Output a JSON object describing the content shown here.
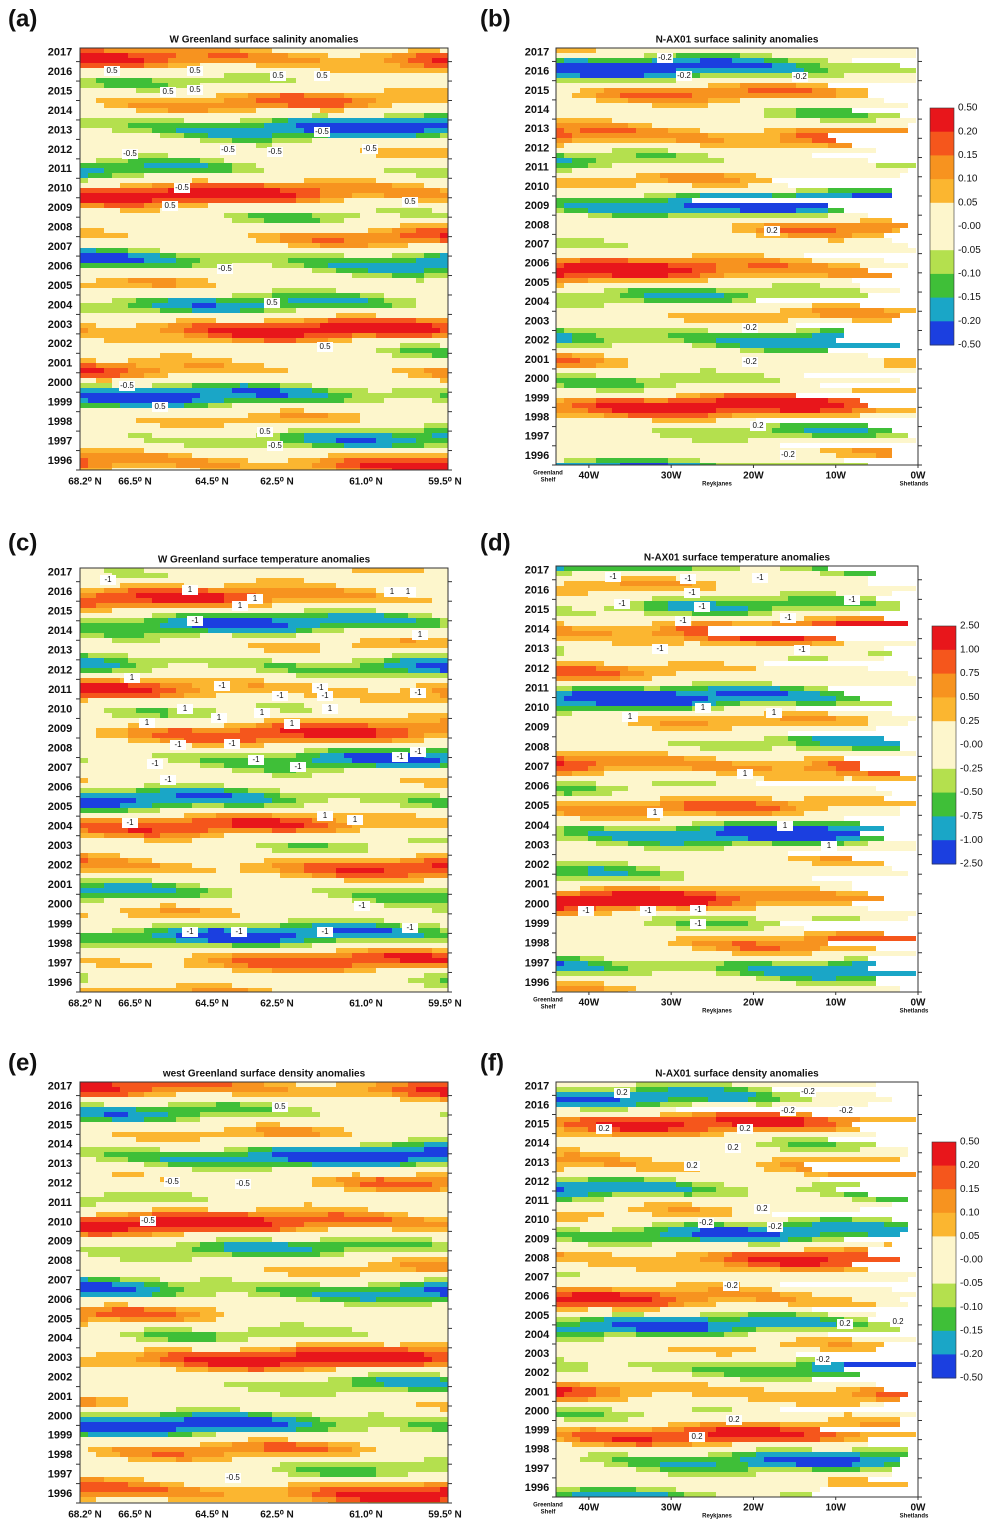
{
  "chart_data": [
    {
      "type": "contour",
      "panel": "(a)",
      "title": "W Greenland surface salinity anomalies",
      "ylim": [
        1996,
        2017.7
      ],
      "yticks": [
        1996,
        1997,
        1998,
        1999,
        2000,
        2001,
        2002,
        2003,
        2004,
        2005,
        2006,
        2007,
        2008,
        2009,
        2010,
        2011,
        2012,
        2013,
        2014,
        2015,
        2016,
        2017
      ],
      "xtick_labels": [
        "68.2⁰ N",
        "66.5⁰ N",
        "64.5⁰ N",
        "62.5⁰ N",
        "61.0⁰ N",
        "59.5⁰ N"
      ],
      "colors": [
        "#e8161b",
        "#f5561c",
        "#f7931f",
        "#fbb630",
        "#fdf6cc",
        "#fdf6cc",
        "#b4e04e",
        "#3fbf38",
        "#1aa6c7",
        "#1b3fe0"
      ],
      "contour_labels": [
        "0.5",
        "0.5",
        "0.5",
        "0.5",
        "0.5",
        "0.5",
        "-0.5",
        "-0.5",
        "-0.5",
        "-0.5",
        "-0.5",
        "-0.5",
        "0.5",
        "0.5",
        "-0.5",
        "0.5",
        "0.5",
        "-0.5",
        "0.5",
        "0.5",
        "-0.5"
      ]
    },
    {
      "type": "contour",
      "panel": "(b)",
      "title": "N-AX01 surface salinity anomalies",
      "ylim": [
        1996,
        2017.7
      ],
      "yticks": [
        1996,
        1997,
        1998,
        1999,
        2000,
        2001,
        2002,
        2003,
        2004,
        2005,
        2006,
        2007,
        2008,
        2009,
        2010,
        2011,
        2012,
        2013,
        2014,
        2015,
        2016,
        2017
      ],
      "xlim": [
        -44,
        0
      ],
      "xticks": [
        {
          "value": -40,
          "label": "40W"
        },
        {
          "value": -30,
          "label": "30W"
        },
        {
          "value": -20,
          "label": "20W"
        },
        {
          "value": -10,
          "label": "10W"
        },
        {
          "value": 0,
          "label": "0W"
        }
      ],
      "section_labels": {
        "start": [
          "Greenland",
          "Shelf"
        ],
        "middle": "Reykjanes",
        "end": "Shetlands"
      },
      "colors": [
        "#e8161b",
        "#f5561c",
        "#f7931f",
        "#fbb630",
        "#fdf6cc",
        "#fdf6cc",
        "#b4e04e",
        "#3fbf38",
        "#1aa6c7",
        "#1b3fe0"
      ],
      "colorbar_labels": [
        "0.50",
        "0.20",
        "0.15",
        "0.10",
        "0.05",
        "-0.00",
        "-0.05",
        "-0.10",
        "-0.15",
        "-0.20",
        "-0.50"
      ],
      "contour_labels": [
        "-0.2",
        "-0.2",
        "-0.2",
        "0.2",
        "-0.2",
        "-0.2",
        "0.2",
        "-0.2"
      ]
    },
    {
      "type": "contour",
      "panel": "(c)",
      "title": "W Greenland surface temperature anomalies",
      "ylim": [
        1996,
        2017.7
      ],
      "yticks": [
        1996,
        1997,
        1998,
        1999,
        2000,
        2001,
        2002,
        2003,
        2004,
        2005,
        2006,
        2007,
        2008,
        2009,
        2010,
        2011,
        2012,
        2013,
        2014,
        2015,
        2016,
        2017
      ],
      "xtick_labels": [
        "68.2⁰ N",
        "66.5⁰ N",
        "64.5⁰ N",
        "62.5⁰ N",
        "61.0⁰ N",
        "59.5⁰ N"
      ],
      "colors": [
        "#e8161b",
        "#f5561c",
        "#f7931f",
        "#fbb630",
        "#fdf6cc",
        "#fdf6cc",
        "#b4e04e",
        "#3fbf38",
        "#1aa6c7",
        "#1b3fe0"
      ],
      "contour_labels": [
        "-1",
        "1",
        "1",
        "1",
        "1",
        "1",
        "-1",
        "1",
        "1",
        "-1",
        "-1",
        "-1",
        "-1",
        "-1",
        "1",
        "1",
        "1",
        "1",
        "1",
        "1",
        "-1",
        "-1",
        "-1",
        "-1",
        "-1",
        "-1",
        "-1",
        "-1",
        "-1",
        "1",
        "1",
        "-1",
        "-1",
        "-1",
        "-1",
        "-1"
      ]
    },
    {
      "type": "contour",
      "panel": "(d)",
      "title": "N-AX01 surface temperature anomalies",
      "ylim": [
        1996,
        2017.7
      ],
      "yticks": [
        1996,
        1997,
        1998,
        1999,
        2000,
        2001,
        2002,
        2003,
        2004,
        2005,
        2006,
        2007,
        2008,
        2009,
        2010,
        2011,
        2012,
        2013,
        2014,
        2015,
        2016,
        2017
      ],
      "xlim": [
        -44,
        0
      ],
      "xticks": [
        {
          "value": -40,
          "label": "40W"
        },
        {
          "value": -30,
          "label": "30W"
        },
        {
          "value": -20,
          "label": "20W"
        },
        {
          "value": -10,
          "label": "10W"
        },
        {
          "value": 0,
          "label": "0W"
        }
      ],
      "section_labels": {
        "start": [
          "Greenland",
          "Shelf"
        ],
        "middle": "Reykjanes",
        "end": "Shetlands"
      },
      "colors": [
        "#e8161b",
        "#f5561c",
        "#f7931f",
        "#fbb630",
        "#fdf6cc",
        "#fdf6cc",
        "#b4e04e",
        "#3fbf38",
        "#1aa6c7",
        "#1b3fe0"
      ],
      "colorbar_labels": [
        "2.50",
        "1.00",
        "0.75",
        "0.50",
        "0.25",
        "-0.00",
        "-0.25",
        "-0.50",
        "-0.75",
        "-1.00",
        "-2.50"
      ],
      "contour_labels": [
        "-1",
        "-1",
        "-1",
        "-1",
        "-1",
        "-1",
        "-1",
        "-1",
        "-1",
        "-1",
        "-1",
        "1",
        "1",
        "1",
        "1",
        "1",
        "1",
        "1",
        "-1",
        "-1",
        "-1",
        "-1"
      ]
    },
    {
      "type": "contour",
      "panel": "(e)",
      "title": "west Greenland surface density anomalies",
      "ylim": [
        1996,
        2017.7
      ],
      "yticks": [
        1996,
        1997,
        1998,
        1999,
        2000,
        2001,
        2002,
        2003,
        2004,
        2005,
        2006,
        2007,
        2008,
        2009,
        2010,
        2011,
        2012,
        2013,
        2014,
        2015,
        2016,
        2017
      ],
      "xtick_labels": [
        "68.2⁰ N",
        "66.5⁰ N",
        "64.5⁰ N",
        "62.5⁰ N",
        "61.0⁰ N",
        "59.5⁰ N"
      ],
      "colors": [
        "#e8161b",
        "#f5561c",
        "#f7931f",
        "#fbb630",
        "#fdf6cc",
        "#fdf6cc",
        "#b4e04e",
        "#3fbf38",
        "#1aa6c7",
        "#1b3fe0"
      ],
      "contour_labels": [
        "0.5",
        "-0.5",
        "-0.5",
        "-0.5",
        "-0.5"
      ]
    },
    {
      "type": "contour",
      "panel": "(f)",
      "title": "N-AX01 surface density anomalies",
      "ylim": [
        1996,
        2017.7
      ],
      "yticks": [
        1996,
        1997,
        1998,
        1999,
        2000,
        2001,
        2002,
        2003,
        2004,
        2005,
        2006,
        2007,
        2008,
        2009,
        2010,
        2011,
        2012,
        2013,
        2014,
        2015,
        2016,
        2017
      ],
      "xlim": [
        -44,
        0
      ],
      "xticks": [
        {
          "value": -40,
          "label": "40W"
        },
        {
          "value": -30,
          "label": "30W"
        },
        {
          "value": -20,
          "label": "20W"
        },
        {
          "value": -10,
          "label": "10W"
        },
        {
          "value": 0,
          "label": "0W"
        }
      ],
      "section_labels": {
        "start": [
          "Greenland",
          "Shelf"
        ],
        "middle": "Reykjanes",
        "end": "Shetlands"
      },
      "colors": [
        "#e8161b",
        "#f5561c",
        "#f7931f",
        "#fbb630",
        "#fdf6cc",
        "#fdf6cc",
        "#b4e04e",
        "#3fbf38",
        "#1aa6c7",
        "#1b3fe0"
      ],
      "colorbar_labels": [
        "0.50",
        "0.20",
        "0.15",
        "0.10",
        "0.05",
        "-0.00",
        "-0.05",
        "-0.10",
        "-0.15",
        "-0.20",
        "-0.50"
      ],
      "contour_labels": [
        "0.2",
        "-0.2",
        "-0.2",
        "-0.2",
        "0.2",
        "0.2",
        "0.2",
        "0.2",
        "0.2",
        "-0.2",
        "-0.2",
        "-0.2",
        "0.2",
        "0.2",
        "-0.2",
        "0.2",
        "0.2"
      ]
    }
  ]
}
